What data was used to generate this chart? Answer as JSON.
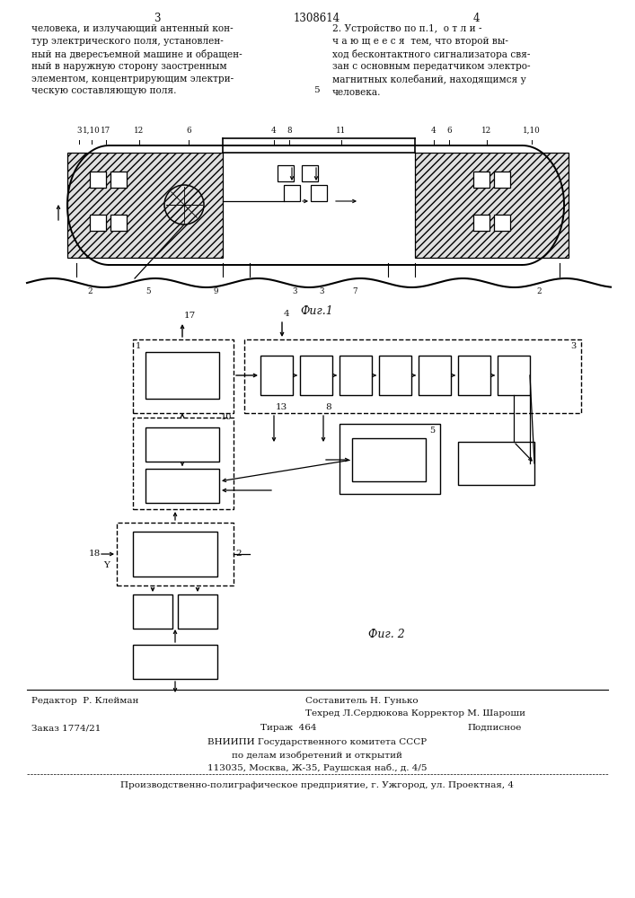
{
  "bg_color": "#ffffff",
  "page_width": 7.07,
  "page_height": 10.0,
  "top_text_left": "человека, и излучающий антенный кон-\nтур электрического поля, установлен-\nный на двересъемной машине и обращен-\nный в наружную сторону заостренным\nэлементом, концентрирующим электри-\nческую составляющую поля.",
  "top_text_right": "2. Устройство по п.1,  о т л и -\nч а ю щ е е с я  тем, что второй вы-\nход бесконтактного сигнализатора свя-\nзан с основным передатчиком электро-\nмагнитных колебаний, находящимся у\nчеловека.",
  "page_num_left": "3",
  "page_num_right": "4",
  "patent_num": "1308614",
  "fig1_caption": "Фиг.1",
  "fig2_caption": "Фиг. 2",
  "bottom_editor": "Редактор  Р. Клейман",
  "bottom_compiler": "Составитель Н. Гунько",
  "bottom_tech": "Техред Л.Сердюкова Корректор М. Шароши",
  "bottom_order": "Заказ 1774/21",
  "bottom_tirazh": "Тираж  464",
  "bottom_podpisnoe": "Подписное",
  "bottom_vniip": "ВНИИПИ Государственного комитета СССР",
  "bottom_po_delam": "по делам изобретений и открытий",
  "bottom_address": "113035, Москва, Ж-35, Раушская наб., д. 4/5",
  "bottom_predpr": "Производственно-полиграфическое предприятие, г. Ужгород, ул. Проектная, 4"
}
